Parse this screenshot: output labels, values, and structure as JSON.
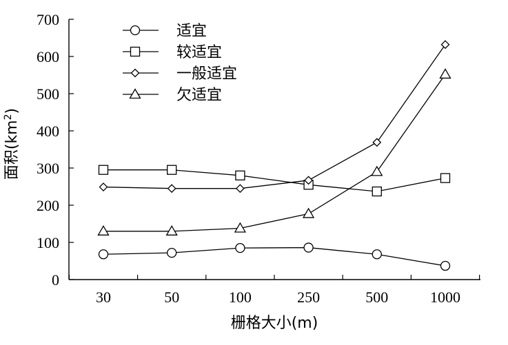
{
  "chart_data": {
    "type": "line",
    "xlabel": "栅格大小(m)",
    "ylabel": "面积(km²)",
    "ylabel_main": "面积(km",
    "ylabel_sup": "2",
    "ylabel_close": ")",
    "categories": [
      "30",
      "50",
      "100",
      "250",
      "500",
      "1000"
    ],
    "ylim": [
      0,
      700
    ],
    "yticks": [
      "0",
      "100",
      "200",
      "300",
      "400",
      "500",
      "600",
      "700"
    ],
    "grid": false,
    "legend_position": "top-left",
    "series": [
      {
        "name": "适宜",
        "marker": "circle",
        "values": [
          68,
          72,
          85,
          86,
          68,
          37
        ]
      },
      {
        "name": "较适宜",
        "marker": "square",
        "values": [
          295,
          295,
          280,
          255,
          237,
          273
        ]
      },
      {
        "name": "一般适宜",
        "marker": "diamond",
        "values": [
          249,
          245,
          245,
          267,
          369,
          632
        ]
      },
      {
        "name": "欠适宜",
        "marker": "triangle",
        "values": [
          130,
          130,
          138,
          177,
          290,
          552
        ]
      }
    ]
  }
}
